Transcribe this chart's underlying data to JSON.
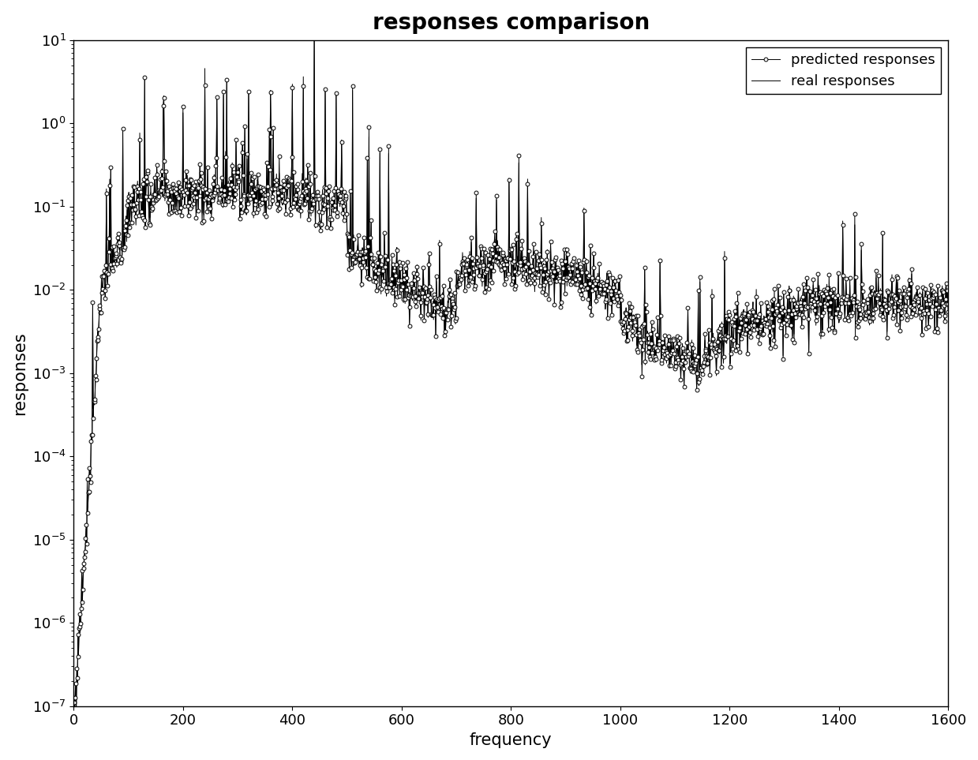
{
  "title": "responses comparison",
  "xlabel": "frequency",
  "ylabel": "responses",
  "xlim": [
    0,
    1600
  ],
  "ylim_log_min": -7,
  "ylim_log_max": 1,
  "legend_predicted": "predicted responses",
  "legend_real": "real responses",
  "bg_color": "#ffffff",
  "line_color": "#000000",
  "title_fontsize": 20,
  "label_fontsize": 15,
  "tick_fontsize": 13,
  "n_points": 1600,
  "seed": 77
}
